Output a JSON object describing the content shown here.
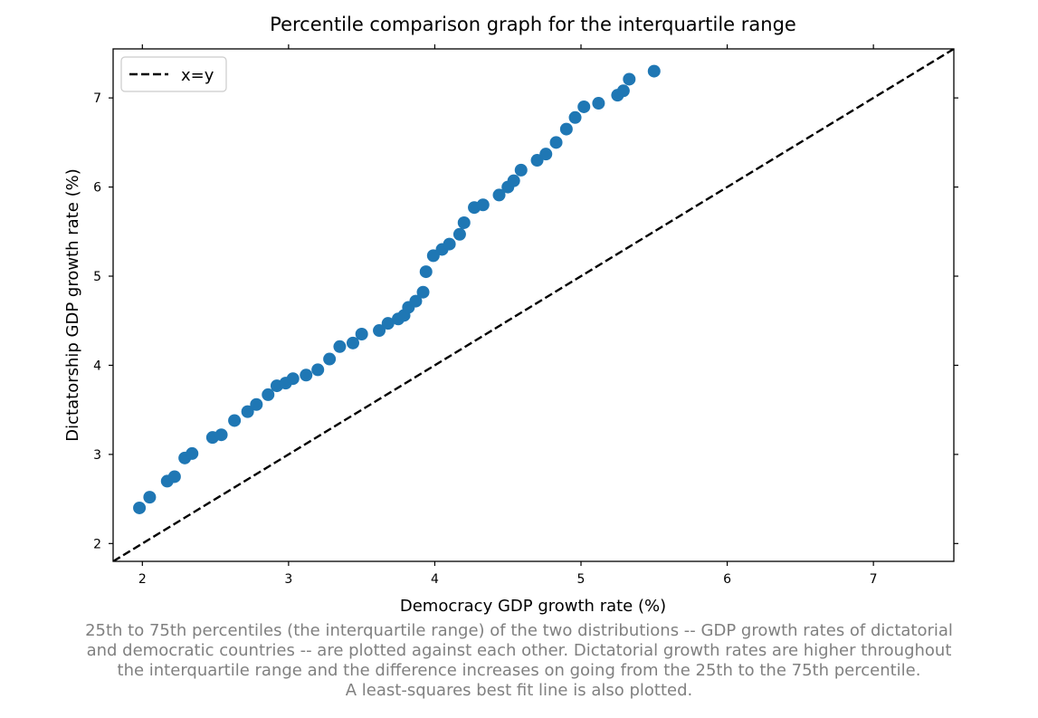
{
  "chart_data": {
    "type": "scatter",
    "title": "Percentile comparison graph for the interquartile range",
    "xlabel": "Democracy GDP growth rate (%)",
    "ylabel": "Dictatorship GDP growth rate (%)",
    "xlim": [
      1.8,
      7.55
    ],
    "ylim": [
      1.8,
      7.55
    ],
    "xticks": [
      "2",
      "3",
      "4",
      "5",
      "6",
      "7"
    ],
    "yticks": [
      "2",
      "3",
      "4",
      "5",
      "6",
      "7"
    ],
    "grid": false,
    "legend": {
      "position": "top-left",
      "entries": [
        "x=y"
      ]
    },
    "reference_line": {
      "name": "x=y",
      "style": "dashed",
      "color": "#000000",
      "x": [
        1.8,
        7.55
      ],
      "y": [
        1.8,
        7.55
      ]
    },
    "series": [
      {
        "color": "#1f77b4",
        "points": [
          [
            1.98,
            2.4
          ],
          [
            2.05,
            2.52
          ],
          [
            2.17,
            2.7
          ],
          [
            2.22,
            2.75
          ],
          [
            2.29,
            2.96
          ],
          [
            2.34,
            3.01
          ],
          [
            2.48,
            3.19
          ],
          [
            2.54,
            3.22
          ],
          [
            2.63,
            3.38
          ],
          [
            2.72,
            3.48
          ],
          [
            2.78,
            3.56
          ],
          [
            2.86,
            3.67
          ],
          [
            2.92,
            3.77
          ],
          [
            2.98,
            3.8
          ],
          [
            3.03,
            3.85
          ],
          [
            3.12,
            3.89
          ],
          [
            3.2,
            3.95
          ],
          [
            3.28,
            4.07
          ],
          [
            3.35,
            4.21
          ],
          [
            3.44,
            4.25
          ],
          [
            3.5,
            4.35
          ],
          [
            3.62,
            4.39
          ],
          [
            3.68,
            4.47
          ],
          [
            3.75,
            4.52
          ],
          [
            3.79,
            4.56
          ],
          [
            3.82,
            4.65
          ],
          [
            3.87,
            4.72
          ],
          [
            3.92,
            4.82
          ],
          [
            3.94,
            5.05
          ],
          [
            3.99,
            5.23
          ],
          [
            4.05,
            5.3
          ],
          [
            4.1,
            5.36
          ],
          [
            4.17,
            5.47
          ],
          [
            4.2,
            5.6
          ],
          [
            4.27,
            5.77
          ],
          [
            4.33,
            5.8
          ],
          [
            4.44,
            5.91
          ],
          [
            4.5,
            6.0
          ],
          [
            4.54,
            6.07
          ],
          [
            4.59,
            6.19
          ],
          [
            4.7,
            6.3
          ],
          [
            4.76,
            6.37
          ],
          [
            4.83,
            6.5
          ],
          [
            4.9,
            6.65
          ],
          [
            4.96,
            6.78
          ],
          [
            5.02,
            6.9
          ],
          [
            5.12,
            6.94
          ],
          [
            5.25,
            7.03
          ],
          [
            5.29,
            7.08
          ],
          [
            5.33,
            7.21
          ],
          [
            5.5,
            7.3
          ]
        ]
      }
    ]
  },
  "caption": [
    "25th to 75th percentiles (the interquartile range) of the two distributions -- GDP growth rates of dictatorial",
    "and democratic countries -- are plotted against each other. Dictatorial growth rates are higher throughout",
    "the interquartile range and the difference increases on going from the 25th to the 75th percentile.",
    "A least-squares best fit line is also plotted."
  ]
}
